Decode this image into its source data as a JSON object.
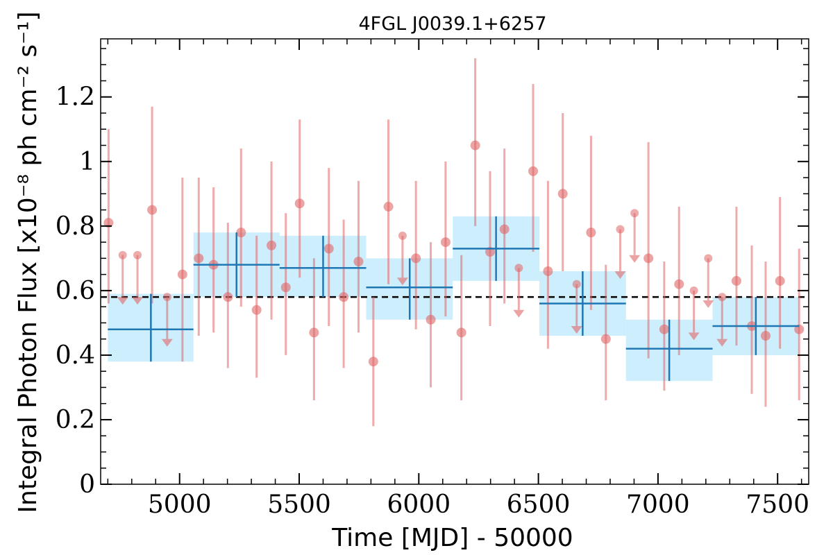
{
  "chart_data": {
    "type": "scatter",
    "title": "4FGL J0039.1+6257",
    "xlabel": "Time [MJD] - 50000",
    "ylabel": "Integral Photon Flux [x10⁻⁸ ph cm⁻² s⁻¹]",
    "xlim": [
      4670,
      7630
    ],
    "ylim": [
      0,
      1.38
    ],
    "xticks": [
      5000,
      5500,
      6000,
      6500,
      7000,
      7500
    ],
    "xtick_labels": [
      "5000",
      "5500",
      "6000",
      "6500",
      "7000",
      "7500"
    ],
    "yticks": [
      0,
      0.2,
      0.4,
      0.6,
      0.8,
      1,
      1.2
    ],
    "ytick_labels": [
      "0",
      "0.2",
      "0.4",
      "0.6",
      "0.8",
      "1",
      "1.2"
    ],
    "average_flux": 0.58,
    "colors": {
      "short_bins": "#e06666",
      "long_bins_line": "#1f77b4",
      "long_bins_band": "#cdeefc",
      "average_line": "#000000"
    },
    "series": [
      {
        "points": [
          {
            "x": 4703,
            "y": 0.81,
            "ylo": 0.56,
            "yhi": 1.1
          },
          {
            "x": 4885,
            "y": 0.85,
            "ylo": 0.56,
            "yhi": 1.17
          },
          {
            "x": 5012,
            "y": 0.65,
            "ylo": 0.38,
            "yhi": 0.95
          },
          {
            "x": 5080,
            "y": 0.7,
            "ylo": 0.46,
            "yhi": 0.95
          },
          {
            "x": 5142,
            "y": 0.68,
            "ylo": 0.47,
            "yhi": 0.92
          },
          {
            "x": 5202,
            "y": 0.58,
            "ylo": 0.36,
            "yhi": 0.81
          },
          {
            "x": 5257,
            "y": 0.78,
            "ylo": 0.55,
            "yhi": 1.04
          },
          {
            "x": 5322,
            "y": 0.54,
            "ylo": 0.33,
            "yhi": 0.77
          },
          {
            "x": 5384,
            "y": 0.74,
            "ylo": 0.51,
            "yhi": 1.0
          },
          {
            "x": 5444,
            "y": 0.61,
            "ylo": 0.4,
            "yhi": 0.84
          },
          {
            "x": 5502,
            "y": 0.87,
            "ylo": 0.64,
            "yhi": 1.13
          },
          {
            "x": 5562,
            "y": 0.47,
            "ylo": 0.26,
            "yhi": 0.7
          },
          {
            "x": 5624,
            "y": 0.73,
            "ylo": 0.49,
            "yhi": 0.98
          },
          {
            "x": 5686,
            "y": 0.58,
            "ylo": 0.36,
            "yhi": 0.82
          },
          {
            "x": 5748,
            "y": 0.69,
            "ylo": 0.47,
            "yhi": 0.94
          },
          {
            "x": 5810,
            "y": 0.38,
            "ylo": 0.18,
            "yhi": 0.58
          },
          {
            "x": 5873,
            "y": 0.86,
            "ylo": 0.62,
            "yhi": 1.13
          },
          {
            "x": 5988,
            "y": 0.7,
            "ylo": 0.48,
            "yhi": 0.94
          },
          {
            "x": 6050,
            "y": 0.51,
            "ylo": 0.3,
            "yhi": 0.75
          },
          {
            "x": 6112,
            "y": 0.75,
            "ylo": 0.52,
            "yhi": 1.0
          },
          {
            "x": 6178,
            "y": 0.47,
            "ylo": 0.26,
            "yhi": 0.71
          },
          {
            "x": 6236,
            "y": 1.05,
            "ylo": 0.8,
            "yhi": 1.32
          },
          {
            "x": 6298,
            "y": 0.72,
            "ylo": 0.49,
            "yhi": 0.97
          },
          {
            "x": 6358,
            "y": 0.79,
            "ylo": 0.56,
            "yhi": 1.04
          },
          {
            "x": 6478,
            "y": 0.97,
            "ylo": 0.72,
            "yhi": 1.24
          },
          {
            "x": 6540,
            "y": 0.66,
            "ylo": 0.42,
            "yhi": 0.94
          },
          {
            "x": 6602,
            "y": 0.9,
            "ylo": 0.66,
            "yhi": 1.15
          },
          {
            "x": 6720,
            "y": 0.78,
            "ylo": 0.54,
            "yhi": 1.08
          },
          {
            "x": 6782,
            "y": 0.45,
            "ylo": 0.26,
            "yhi": 0.68
          },
          {
            "x": 6960,
            "y": 0.7,
            "ylo": 0.39,
            "yhi": 1.06
          },
          {
            "x": 7026,
            "y": 0.48,
            "ylo": 0.29,
            "yhi": 0.69
          },
          {
            "x": 7088,
            "y": 0.62,
            "ylo": 0.4,
            "yhi": 0.86
          },
          {
            "x": 7328,
            "y": 0.63,
            "ylo": 0.43,
            "yhi": 0.86
          },
          {
            "x": 7392,
            "y": 0.49,
            "ylo": 0.28,
            "yhi": 0.74
          },
          {
            "x": 7450,
            "y": 0.46,
            "ylo": 0.24,
            "yhi": 0.69
          },
          {
            "x": 7510,
            "y": 0.63,
            "ylo": 0.42,
            "yhi": 0.89
          },
          {
            "x": 7590,
            "y": 0.48,
            "ylo": 0.26,
            "yhi": 0.73
          }
        ]
      },
      {
        "upper_limits": [
          {
            "x": 4762,
            "y": 0.71
          },
          {
            "x": 4824,
            "y": 0.71
          },
          {
            "x": 4948,
            "y": 0.58
          },
          {
            "x": 5932,
            "y": 0.77
          },
          {
            "x": 6418,
            "y": 0.67
          },
          {
            "x": 6660,
            "y": 0.62
          },
          {
            "x": 6842,
            "y": 0.79
          },
          {
            "x": 6902,
            "y": 0.84
          },
          {
            "x": 7150,
            "y": 0.6
          },
          {
            "x": 7210,
            "y": 0.7
          },
          {
            "x": 7268,
            "y": 0.58
          }
        ]
      },
      {
        "bins": [
          {
            "x0": 4700,
            "x1": 5058,
            "xc": 4880,
            "y": 0.48,
            "ylo": 0.38,
            "yhi": 0.59
          },
          {
            "x0": 5058,
            "x1": 5418,
            "xc": 5238,
            "y": 0.68,
            "ylo": 0.58,
            "yhi": 0.78
          },
          {
            "x0": 5418,
            "x1": 5780,
            "xc": 5600,
            "y": 0.67,
            "ylo": 0.58,
            "yhi": 0.77
          },
          {
            "x0": 5780,
            "x1": 6142,
            "xc": 5962,
            "y": 0.61,
            "ylo": 0.51,
            "yhi": 0.7
          },
          {
            "x0": 6142,
            "x1": 6504,
            "xc": 6323,
            "y": 0.73,
            "ylo": 0.63,
            "yhi": 0.83
          },
          {
            "x0": 6504,
            "x1": 6866,
            "xc": 6685,
            "y": 0.56,
            "ylo": 0.46,
            "yhi": 0.66
          },
          {
            "x0": 6866,
            "x1": 7228,
            "xc": 7047,
            "y": 0.42,
            "ylo": 0.32,
            "yhi": 0.51
          },
          {
            "x0": 7228,
            "x1": 7590,
            "xc": 7409,
            "y": 0.49,
            "ylo": 0.4,
            "yhi": 0.58
          }
        ]
      }
    ]
  }
}
